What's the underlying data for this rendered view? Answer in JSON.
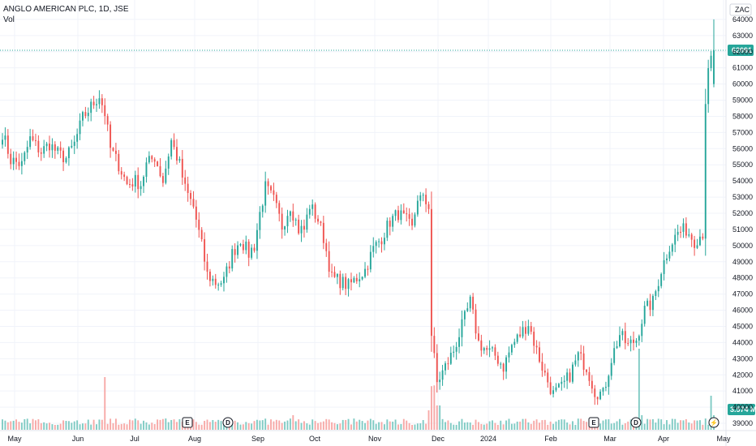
{
  "header": {
    "title": "ANGLO AMERICAN PLC, 1D, JSE",
    "vol_label": "Vol"
  },
  "currency_badge": "ZAC",
  "current_price_label": "62091",
  "current_volume_label": "3.574 M",
  "colors": {
    "up": "#26a69a",
    "down": "#ef5350",
    "vol_up": "#80cbc4",
    "vol_down": "#f7a9a7",
    "price_line": "#26a69a",
    "grid": "#f0f3fa"
  },
  "events": [
    {
      "kind": "earnings",
      "letter": "E",
      "x_month": "Jul"
    },
    {
      "kind": "dividend",
      "letter": "D",
      "x_month": "Aug"
    },
    {
      "kind": "earnings",
      "letter": "E",
      "x_month": "Feb"
    },
    {
      "kind": "dividend",
      "letter": "D",
      "x_month": "Mar"
    },
    {
      "kind": "split-flash",
      "letter": "⚡",
      "x_month": "Apr"
    }
  ],
  "chart_data": {
    "type": "candlestick",
    "title": "ANGLO AMERICAN PLC, 1D, JSE",
    "xlabel": "",
    "ylabel": "",
    "ylim": [
      38600,
      65200
    ],
    "y_ticks": [
      39000,
      40000,
      41000,
      42000,
      43000,
      44000,
      45000,
      46000,
      47000,
      48000,
      49000,
      50000,
      51000,
      52000,
      53000,
      54000,
      55000,
      56000,
      57000,
      58000,
      59000,
      60000,
      61000,
      62000,
      63000,
      64000
    ],
    "x_tick_labels": [
      "May",
      "Jun",
      "Jul",
      "Aug",
      "Sep",
      "Oct",
      "Nov",
      "Dec",
      "2024",
      "Feb",
      "Mar",
      "Apr",
      "May"
    ],
    "grid": true,
    "legend": "none",
    "anchors": [
      [
        0,
        57000
      ],
      [
        3,
        55300
      ],
      [
        7,
        55000
      ],
      [
        10,
        56600
      ],
      [
        14,
        55800
      ],
      [
        17,
        56300
      ],
      [
        20,
        55700
      ],
      [
        23,
        55400
      ],
      [
        26,
        56300
      ],
      [
        29,
        57900
      ],
      [
        32,
        58600
      ],
      [
        35,
        59300
      ],
      [
        37,
        58200
      ],
      [
        39,
        56000
      ],
      [
        42,
        55000
      ],
      [
        45,
        53800
      ],
      [
        48,
        54000
      ],
      [
        50,
        53800
      ],
      [
        52,
        55000
      ],
      [
        55,
        55500
      ],
      [
        58,
        54000
      ],
      [
        61,
        56500
      ],
      [
        64,
        55000
      ],
      [
        66,
        53500
      ],
      [
        69,
        52400
      ],
      [
        72,
        50000
      ],
      [
        74,
        48200
      ],
      [
        77,
        47700
      ],
      [
        80,
        47800
      ],
      [
        83,
        49500
      ],
      [
        86,
        50400
      ],
      [
        89,
        49500
      ],
      [
        91,
        50000
      ],
      [
        93,
        52000
      ],
      [
        95,
        53600
      ],
      [
        98,
        52800
      ],
      [
        101,
        51200
      ],
      [
        104,
        52500
      ],
      [
        107,
        51000
      ],
      [
        109,
        51000
      ],
      [
        111,
        52500
      ],
      [
        114,
        51600
      ],
      [
        116,
        50500
      ],
      [
        119,
        48000
      ],
      [
        122,
        47800
      ],
      [
        125,
        47500
      ],
      [
        128,
        48000
      ],
      [
        131,
        48500
      ],
      [
        134,
        49800
      ],
      [
        137,
        50500
      ],
      [
        140,
        51500
      ],
      [
        143,
        52000
      ],
      [
        146,
        51500
      ],
      [
        148,
        51000
      ],
      [
        150,
        53000
      ],
      [
        152,
        52800
      ],
      [
        154,
        52500
      ],
      [
        155,
        44500
      ],
      [
        157,
        41500
      ],
      [
        160,
        42500
      ],
      [
        163,
        43500
      ],
      [
        166,
        45000
      ],
      [
        169,
        46500
      ],
      [
        172,
        44000
      ],
      [
        175,
        43500
      ],
      [
        178,
        43200
      ],
      [
        181,
        42500
      ],
      [
        184,
        43800
      ],
      [
        187,
        44500
      ],
      [
        190,
        45200
      ],
      [
        193,
        43500
      ],
      [
        196,
        42000
      ],
      [
        199,
        40800
      ],
      [
        202,
        41200
      ],
      [
        205,
        42000
      ],
      [
        208,
        43200
      ],
      [
        211,
        42500
      ],
      [
        214,
        41000
      ],
      [
        217,
        40800
      ],
      [
        220,
        43000
      ],
      [
        223,
        44500
      ],
      [
        226,
        43800
      ],
      [
        229,
        44200
      ],
      [
        232,
        46000
      ],
      [
        235,
        46500
      ],
      [
        238,
        48500
      ],
      [
        241,
        50000
      ],
      [
        244,
        50800
      ],
      [
        247,
        51000
      ],
      [
        250,
        50300
      ],
      [
        253,
        50800
      ],
      [
        254,
        59000
      ],
      [
        255,
        60600
      ],
      [
        256,
        61500
      ],
      [
        257,
        62091
      ]
    ],
    "last_candle": {
      "open": 60000,
      "high": 64000,
      "low": 59800,
      "close": 62091
    },
    "big_gap_note": "",
    "volume": {
      "unit": "M",
      "last": 3.574
    }
  }
}
